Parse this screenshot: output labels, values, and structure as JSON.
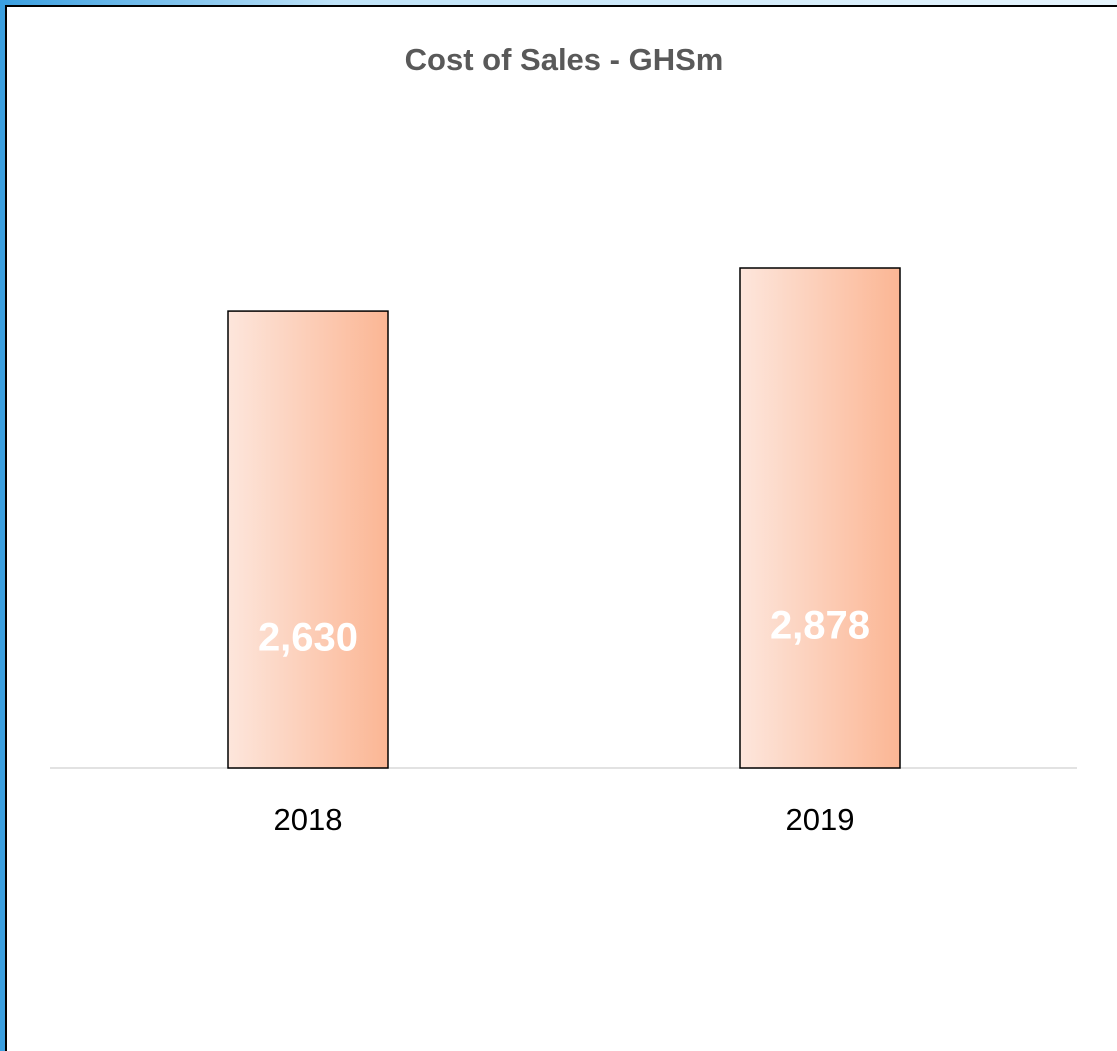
{
  "chart_data": {
    "type": "bar",
    "title": "Cost of Sales - GHSm",
    "categories": [
      "2018",
      "2019"
    ],
    "values": [
      2630,
      2878
    ],
    "value_labels": [
      "2,630",
      "2,878"
    ],
    "color": "#fbb694"
  }
}
